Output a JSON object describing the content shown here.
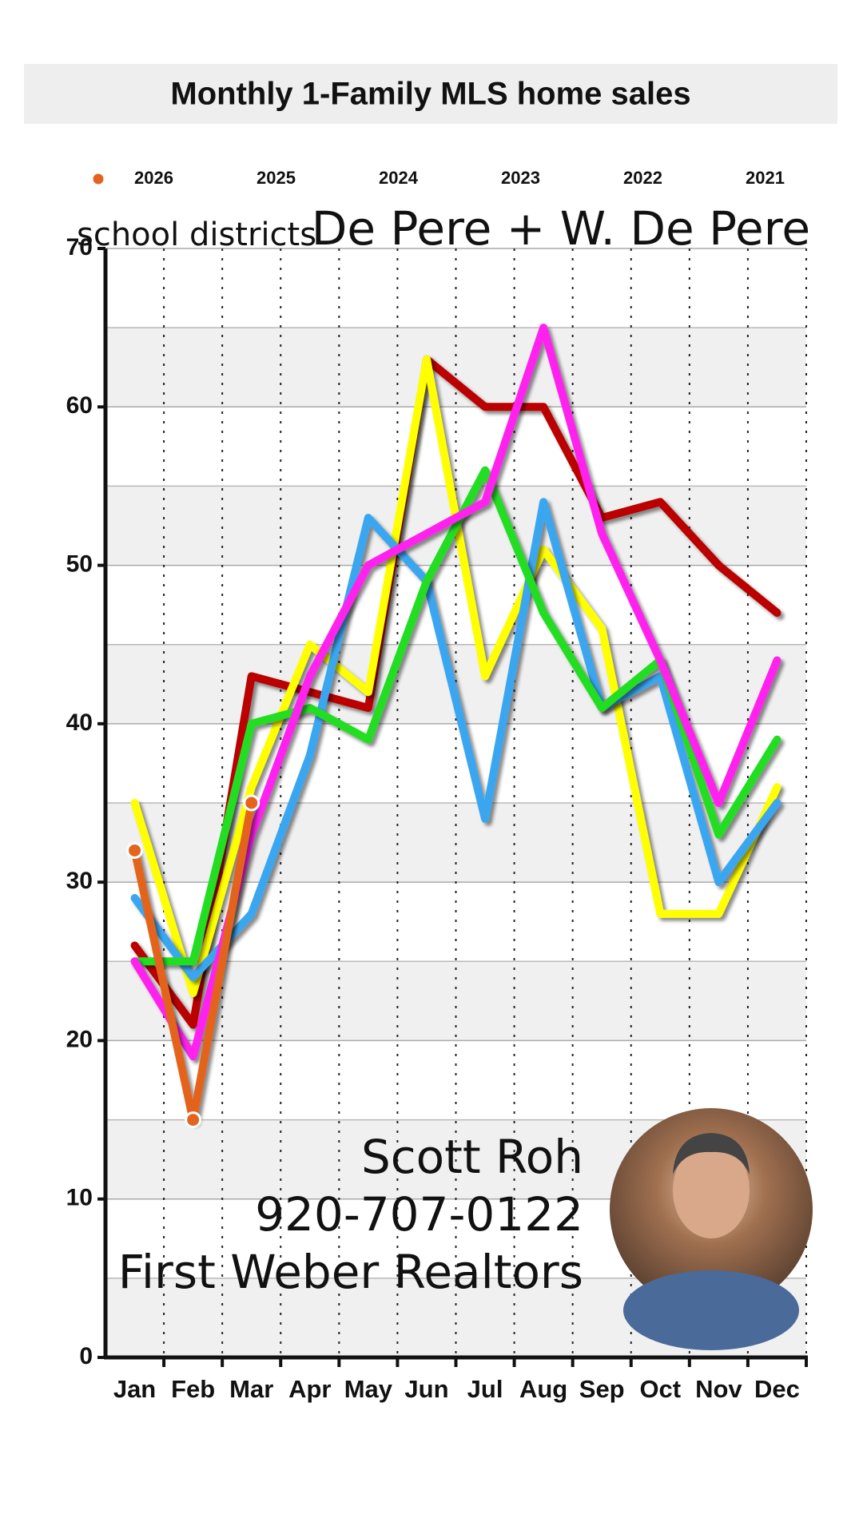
{
  "chart_data": {
    "type": "line",
    "title": "Monthly 1-Family MLS home sales",
    "subtitle_small": "school districts",
    "subtitle_large": "De Pere + W. De Pere",
    "annotation": [
      "Scott Roh",
      "920-707-0122",
      "First Weber Realtors"
    ],
    "categories": [
      "Jan",
      "Feb",
      "Mar",
      "Apr",
      "May",
      "Jun",
      "Jul",
      "Aug",
      "Sep",
      "Oct",
      "Nov",
      "Dec"
    ],
    "series": [
      {
        "name": "2026",
        "color": "#e4641e",
        "markers": true,
        "values": [
          32,
          15,
          35,
          null,
          null,
          null,
          null,
          null,
          null,
          null,
          null,
          null
        ]
      },
      {
        "name": "2025",
        "color": "#ff22ee",
        "values": [
          25,
          19,
          33,
          43,
          50,
          52,
          54,
          65,
          52,
          44,
          35,
          44
        ]
      },
      {
        "name": "2024",
        "color": "#22dd22",
        "values": [
          25,
          25,
          40,
          41,
          39,
          49,
          56,
          47,
          41,
          44,
          33,
          39
        ]
      },
      {
        "name": "2023",
        "color": "#3aa6f0",
        "values": [
          29,
          24,
          28,
          38,
          53,
          49,
          34,
          54,
          41,
          43,
          30,
          35
        ]
      },
      {
        "name": "2022",
        "color": "#ffff00",
        "values": [
          35,
          23,
          36,
          45,
          42,
          63,
          43,
          51,
          46,
          28,
          28,
          36
        ]
      },
      {
        "name": "2021",
        "color": "#bb0000",
        "values": [
          26,
          21,
          43,
          42,
          41,
          63,
          60,
          60,
          53,
          54,
          50,
          47
        ]
      }
    ],
    "ylim": [
      0,
      70
    ],
    "yticks": [
      0,
      10,
      20,
      30,
      40,
      50,
      60,
      70
    ],
    "grid": true
  }
}
